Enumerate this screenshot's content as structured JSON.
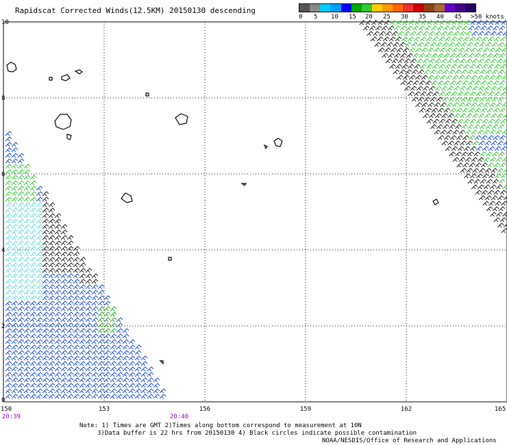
{
  "title": "Rapidscat Corrected Winds(12.5KM) 20150130 descending",
  "legend": {
    "colors": [
      "#555555",
      "#888888",
      "#00ccff",
      "#00a0ff",
      "#0000ff",
      "#00aa00",
      "#33cc33",
      "#ffcc00",
      "#ff9900",
      "#ff6600",
      "#ee3333",
      "#cc0000",
      "#8b4513",
      "#aa6633",
      "#6600cc",
      "#440088",
      "#220066"
    ],
    "ticks": [
      "0",
      "5",
      "10",
      "15",
      "20",
      "25",
      "30",
      "35",
      "40",
      "45",
      ">50 knots"
    ]
  },
  "axes": {
    "y_labels": [
      "10",
      "8",
      "6",
      "4",
      "2",
      "0"
    ],
    "x_labels": [
      "150",
      "153",
      "156",
      "159",
      "162",
      "165"
    ]
  },
  "times": {
    "left": "20:39",
    "right": "20:40"
  },
  "notes": {
    "line1": "Note: 1) Times are GMT 2)Times along bottom correspond to measurement at 10N",
    "line2": "3)Data buffer is 22 hrs from 20150130 4) Black circles indicate possible contamination",
    "line3": "NOAA/NESDIS/Office of Research and Applications"
  },
  "map": {
    "lon_range": [
      150,
      165
    ],
    "lat_range": [
      0,
      10
    ],
    "grid": "dotted"
  }
}
